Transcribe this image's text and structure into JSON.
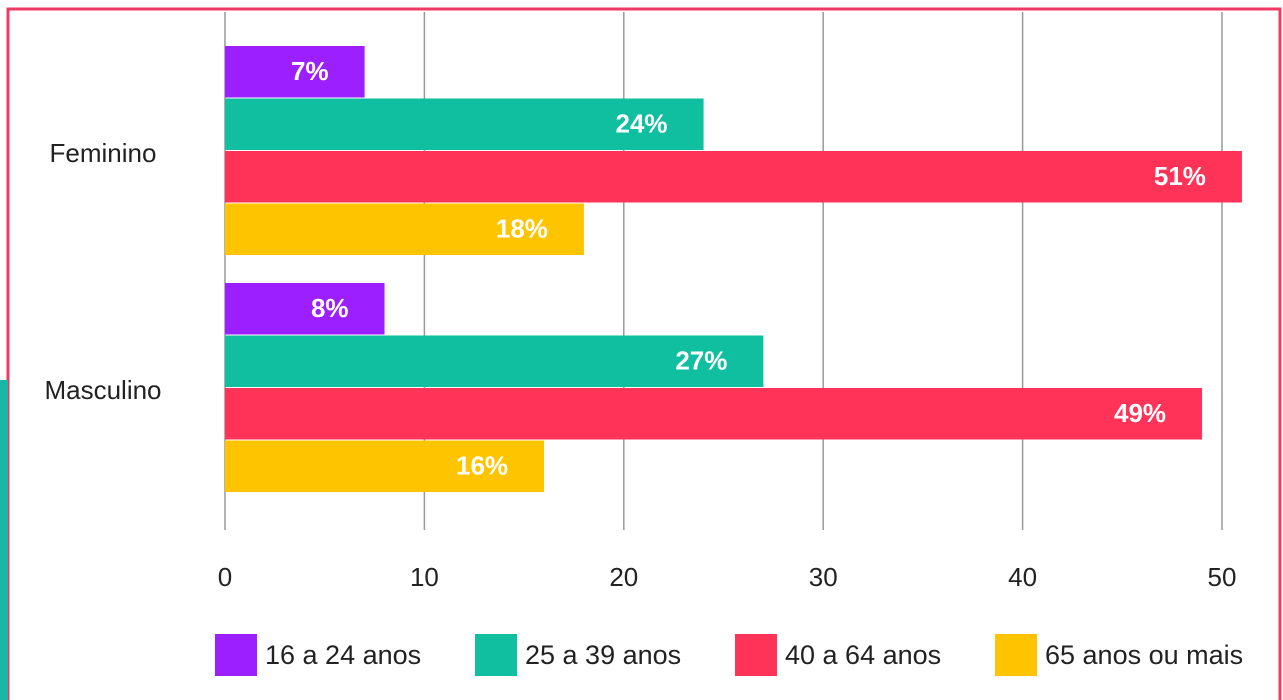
{
  "chart_data": {
    "type": "bar",
    "orientation": "horizontal",
    "categories": [
      "Feminino",
      "Masculino"
    ],
    "series": [
      {
        "name": "16 a 24 anos",
        "color": "#9b1fff",
        "values": [
          7,
          8
        ],
        "value_labels": [
          "7%",
          "8%"
        ]
      },
      {
        "name": "25 a 39 anos",
        "color": "#0fbf9f",
        "values": [
          24,
          27
        ],
        "value_labels": [
          "24%",
          "27%"
        ]
      },
      {
        "name": "40 a 64 anos",
        "color": "#ff3358",
        "values": [
          51,
          49
        ],
        "value_labels": [
          "51%",
          "49%"
        ]
      },
      {
        "name": "65 anos ou mais",
        "color": "#ffc400",
        "values": [
          18,
          16
        ],
        "value_labels": [
          "18%",
          "16%"
        ]
      }
    ],
    "xlim": [
      0,
      50
    ],
    "xticks": [
      0,
      10,
      20,
      30,
      40,
      50
    ],
    "grid": true,
    "legend": "bottom"
  }
}
